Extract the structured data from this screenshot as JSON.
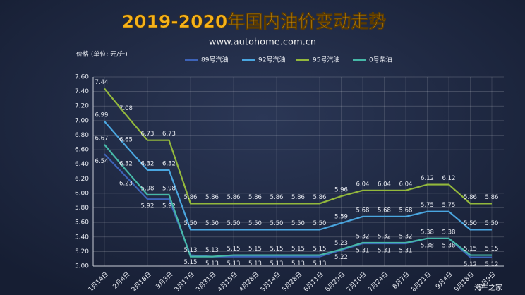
{
  "chart_data": {
    "type": "line",
    "title": "2019-2020年国内油价变动走势",
    "subtitle": "www.autohome.com.cn",
    "y_axis_label": "价格 (单位: 元/升)",
    "watermark": "汽车之家",
    "categories": [
      "1月14日",
      "2月4日",
      "2月18日",
      "3月3日",
      "3月17日",
      "3月31日",
      "4月15日",
      "4月28日",
      "5月14日",
      "5月28日",
      "6月11日",
      "6月29日",
      "7月10日",
      "7月24日",
      "8月7日",
      "8月21日",
      "9月4日",
      "9月18日",
      "10月9日"
    ],
    "series": [
      {
        "name": "89号汽油",
        "color": "#3d63b8",
        "values": [
          6.54,
          6.23,
          5.92,
          5.92,
          5.15,
          5.13,
          5.13,
          5.13,
          5.13,
          5.13,
          5.13,
          5.22,
          5.31,
          5.31,
          5.31,
          5.38,
          5.38,
          5.12,
          5.12
        ],
        "value_labels": [
          "6.54",
          "6.23",
          "5.92",
          "5.92",
          "5.15",
          "5.13",
          "5.13",
          "5.13",
          "5.13",
          "5.13",
          "5.13",
          "5.22",
          "5.31",
          "5.31",
          "5.31",
          "5.38",
          "5.38",
          "5.12",
          "5.12"
        ]
      },
      {
        "name": "92号汽油",
        "color": "#4aa6e0",
        "values": [
          6.99,
          6.65,
          6.32,
          6.32,
          5.5,
          5.5,
          5.5,
          5.5,
          5.5,
          5.5,
          5.5,
          5.59,
          5.68,
          5.68,
          5.68,
          5.75,
          5.75,
          5.5,
          5.5
        ],
        "value_labels": [
          "6.99",
          "6.65",
          "6.32",
          "6.32",
          "5.50",
          "5.50",
          "5.50",
          "5.50",
          "5.50",
          "5.50",
          "5.50",
          "5.59",
          "5.68",
          "5.68",
          "5.68",
          "5.75",
          "5.75",
          "5.50",
          "5.50"
        ]
      },
      {
        "name": "95号汽油",
        "color": "#93b83c",
        "values": [
          7.44,
          7.08,
          6.73,
          6.73,
          5.86,
          5.86,
          5.86,
          5.86,
          5.86,
          5.86,
          5.86,
          5.96,
          6.04,
          6.04,
          6.04,
          6.12,
          6.12,
          5.86,
          5.86
        ],
        "value_labels": [
          "7.44",
          "7.08",
          "6.73",
          "6.73",
          "5.86",
          "5.86",
          "5.86",
          "5.86",
          "5.86",
          "5.86",
          "5.86",
          "5.96",
          "6.04",
          "6.04",
          "6.04",
          "6.12",
          "6.12",
          "5.86",
          "5.86"
        ]
      },
      {
        "name": "0号柴油",
        "color": "#46b8a8",
        "values": [
          6.67,
          6.32,
          5.98,
          5.98,
          5.13,
          5.13,
          5.15,
          5.15,
          5.15,
          5.15,
          5.15,
          5.23,
          5.32,
          5.32,
          5.32,
          5.38,
          5.38,
          5.15,
          5.15
        ],
        "value_labels": [
          "6.67",
          "6.32",
          "5.98",
          "5.98",
          "5.13",
          "5.13",
          "5.15",
          "5.15",
          "5.15",
          "5.15",
          "5.15",
          "5.23",
          "5.32",
          "5.32",
          "5.32",
          "5.38",
          "5.38",
          "5.15",
          "5.15"
        ]
      }
    ],
    "ylim": [
      5,
      7.6
    ],
    "yticks": [
      {
        "value": 5,
        "label": "5.00"
      },
      {
        "value": 5.2,
        "label": "5.20"
      },
      {
        "value": 5.4,
        "label": "5.40"
      },
      {
        "value": 5.6,
        "label": "5.60"
      },
      {
        "value": 5.8,
        "label": "5.80"
      },
      {
        "value": 6,
        "label": "6.00"
      },
      {
        "value": 6.2,
        "label": "6.20"
      },
      {
        "value": 6.4,
        "label": "6.40"
      },
      {
        "value": 6.6,
        "label": "6.60"
      },
      {
        "value": 6.8,
        "label": "6.80"
      },
      {
        "value": 7,
        "label": "7.00"
      },
      {
        "value": 7.2,
        "label": "7.20"
      },
      {
        "value": 7.4,
        "label": "7.40"
      },
      {
        "value": 7.6,
        "label": "7.60"
      }
    ],
    "grid": true
  }
}
